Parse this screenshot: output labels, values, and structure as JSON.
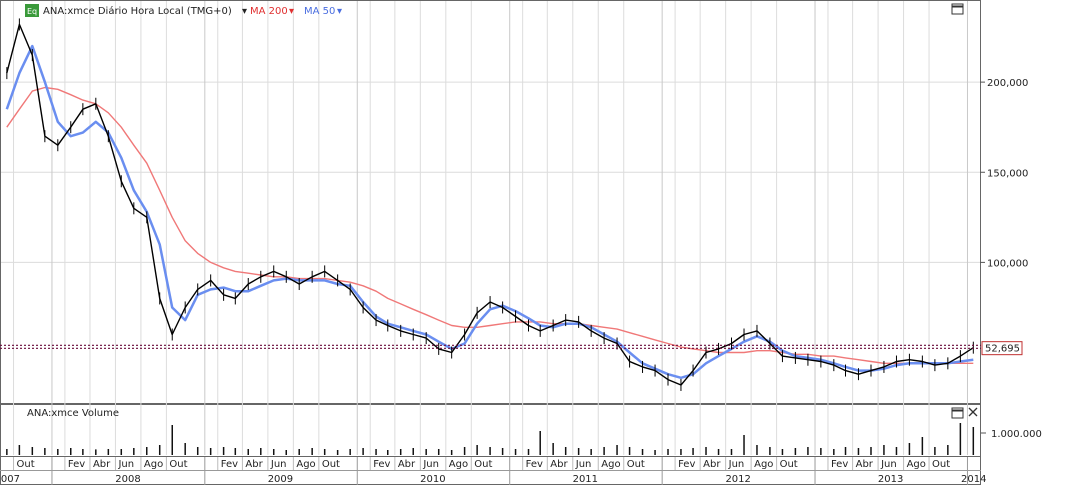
{
  "legend": {
    "badge": "Eq",
    "main_label": "ANA:xmce Diário Hora Local (TMG+0)",
    "ma200_label": "MA 200",
    "ma50_label": "MA 50",
    "colors": {
      "price": "#000000",
      "ma200": "#f07878",
      "ma50": "#6a8ef0",
      "badge": "#3a9a3a"
    }
  },
  "volume_panel": {
    "title": "ANA:xmce Volume",
    "tick": "1.000.000"
  },
  "price_axis": {
    "ticks": [
      "200,000",
      "150,000",
      "100,000"
    ],
    "last_price": "52,695"
  },
  "chart_data": {
    "type": "candlestick",
    "title": "ANA:xmce Diário Hora Local (TMG+0)",
    "x_range": [
      "2007-09-01",
      "2014-01-31"
    ],
    "ylim": [
      22000,
      245000
    ],
    "yticks": [
      100000,
      150000,
      200000
    ],
    "grid": true,
    "last_price": 52695,
    "support_line": 54000,
    "series": [
      {
        "name": "ANA:xmce",
        "x": [
          "2007-09",
          "2007-10",
          "2007-11",
          "2007-12",
          "2008-01",
          "2008-02",
          "2008-03",
          "2008-04",
          "2008-05",
          "2008-06",
          "2008-07",
          "2008-08",
          "2008-09",
          "2008-10",
          "2008-11",
          "2008-12",
          "2009-01",
          "2009-02",
          "2009-03",
          "2009-04",
          "2009-05",
          "2009-06",
          "2009-07",
          "2009-08",
          "2009-09",
          "2009-10",
          "2009-11",
          "2009-12",
          "2010-01",
          "2010-02",
          "2010-03",
          "2010-04",
          "2010-05",
          "2010-06",
          "2010-07",
          "2010-08",
          "2010-09",
          "2010-10",
          "2010-11",
          "2010-12",
          "2011-01",
          "2011-02",
          "2011-03",
          "2011-04",
          "2011-05",
          "2011-06",
          "2011-07",
          "2011-08",
          "2011-09",
          "2011-10",
          "2011-11",
          "2011-12",
          "2012-01",
          "2012-02",
          "2012-03",
          "2012-04",
          "2012-05",
          "2012-06",
          "2012-07",
          "2012-08",
          "2012-09",
          "2012-10",
          "2012-11",
          "2012-12",
          "2013-01",
          "2013-02",
          "2013-03",
          "2013-04",
          "2013-05",
          "2013-06",
          "2013-07",
          "2013-08",
          "2013-09",
          "2013-10",
          "2013-11",
          "2013-12",
          "2014-01"
        ],
        "values": [
          205000,
          232000,
          215000,
          170000,
          165000,
          175000,
          185000,
          188000,
          170000,
          145000,
          130000,
          125000,
          80000,
          60000,
          75000,
          85000,
          90000,
          82000,
          80000,
          88000,
          92000,
          95000,
          92000,
          88000,
          92000,
          95000,
          90000,
          85000,
          75000,
          68000,
          65000,
          62000,
          60000,
          58000,
          52000,
          50000,
          60000,
          72000,
          78000,
          75000,
          70000,
          65000,
          62000,
          65000,
          68000,
          67000,
          62000,
          58000,
          55000,
          45000,
          42000,
          40000,
          35000,
          32000,
          40000,
          50000,
          52000,
          55000,
          60000,
          62000,
          55000,
          48000,
          47000,
          46000,
          45000,
          43000,
          40000,
          38000,
          40000,
          42000,
          45000,
          46000,
          45000,
          43000,
          44000,
          48000,
          52695
        ]
      },
      {
        "name": "MA 50",
        "x": [
          "2007-09",
          "2007-10",
          "2007-11",
          "2007-12",
          "2008-01",
          "2008-02",
          "2008-03",
          "2008-04",
          "2008-05",
          "2008-06",
          "2008-07",
          "2008-08",
          "2008-09",
          "2008-10",
          "2008-11",
          "2008-12",
          "2009-01",
          "2009-02",
          "2009-03",
          "2009-04",
          "2009-05",
          "2009-06",
          "2009-07",
          "2009-08",
          "2009-09",
          "2009-10",
          "2009-11",
          "2009-12",
          "2010-01",
          "2010-02",
          "2010-03",
          "2010-04",
          "2010-05",
          "2010-06",
          "2010-07",
          "2010-08",
          "2010-09",
          "2010-10",
          "2010-11",
          "2010-12",
          "2011-01",
          "2011-02",
          "2011-03",
          "2011-04",
          "2011-05",
          "2011-06",
          "2011-07",
          "2011-08",
          "2011-09",
          "2011-10",
          "2011-11",
          "2011-12",
          "2012-01",
          "2012-02",
          "2012-03",
          "2012-04",
          "2012-05",
          "2012-06",
          "2012-07",
          "2012-08",
          "2012-09",
          "2012-10",
          "2012-11",
          "2012-12",
          "2013-01",
          "2013-02",
          "2013-03",
          "2013-04",
          "2013-05",
          "2013-06",
          "2013-07",
          "2013-08",
          "2013-09",
          "2013-10",
          "2013-11",
          "2013-12",
          "2014-01"
        ],
        "values": [
          185000,
          205000,
          220000,
          200000,
          178000,
          170000,
          172000,
          178000,
          172000,
          158000,
          140000,
          128000,
          110000,
          75000,
          68000,
          82000,
          85000,
          86000,
          84000,
          84000,
          87000,
          90000,
          91000,
          90000,
          90000,
          90000,
          88000,
          87000,
          78000,
          70000,
          66000,
          64000,
          62000,
          60000,
          56000,
          52000,
          55000,
          66000,
          74000,
          76000,
          73000,
          69000,
          65000,
          64000,
          66000,
          66000,
          64000,
          60000,
          56000,
          50000,
          44000,
          41000,
          38000,
          36000,
          38000,
          44000,
          48000,
          52000,
          56000,
          59000,
          56000,
          51000,
          48000,
          47000,
          46000,
          44000,
          42000,
          40000,
          40000,
          41000,
          43000,
          44000,
          44000,
          44000,
          44000,
          45000,
          46000
        ]
      },
      {
        "name": "MA 200",
        "x": [
          "2007-09",
          "2007-10",
          "2007-11",
          "2007-12",
          "2008-01",
          "2008-02",
          "2008-03",
          "2008-04",
          "2008-05",
          "2008-06",
          "2008-07",
          "2008-08",
          "2008-09",
          "2008-10",
          "2008-11",
          "2008-12",
          "2009-01",
          "2009-02",
          "2009-03",
          "2009-04",
          "2009-05",
          "2009-06",
          "2009-07",
          "2009-08",
          "2009-09",
          "2009-10",
          "2009-11",
          "2009-12",
          "2010-01",
          "2010-02",
          "2010-03",
          "2010-04",
          "2010-05",
          "2010-06",
          "2010-07",
          "2010-08",
          "2010-09",
          "2010-10",
          "2010-11",
          "2010-12",
          "2011-01",
          "2011-02",
          "2011-03",
          "2011-04",
          "2011-05",
          "2011-06",
          "2011-07",
          "2011-08",
          "2011-09",
          "2011-10",
          "2011-11",
          "2011-12",
          "2012-01",
          "2012-02",
          "2012-03",
          "2012-04",
          "2012-05",
          "2012-06",
          "2012-07",
          "2012-08",
          "2012-09",
          "2012-10",
          "2012-11",
          "2012-12",
          "2013-01",
          "2013-02",
          "2013-03",
          "2013-04",
          "2013-05",
          "2013-06",
          "2013-07",
          "2013-08",
          "2013-09",
          "2013-10",
          "2013-11",
          "2013-12",
          "2014-01"
        ],
        "values": [
          175000,
          185000,
          195000,
          197000,
          196000,
          193000,
          190000,
          188000,
          183000,
          175000,
          165000,
          155000,
          140000,
          125000,
          112000,
          105000,
          100000,
          97000,
          95000,
          94000,
          93000,
          92000,
          92000,
          91000,
          91000,
          91000,
          90000,
          89000,
          87000,
          84000,
          80000,
          77000,
          74000,
          71000,
          68000,
          65000,
          64000,
          64000,
          65000,
          66000,
          67000,
          67000,
          67000,
          66000,
          66000,
          66000,
          65000,
          64000,
          63000,
          61000,
          59000,
          57000,
          55000,
          53000,
          52000,
          51000,
          50000,
          50000,
          50000,
          51000,
          51000,
          50000,
          49000,
          49000,
          48000,
          48000,
          47000,
          46000,
          45000,
          44000,
          44000,
          44000,
          44000,
          44000,
          44000,
          44000,
          44000
        ]
      }
    ],
    "volume": {
      "name": "ANA:xmce Volume",
      "tick": 1000000,
      "x": [
        "2007-09",
        "2007-10",
        "2007-11",
        "2007-12",
        "2008-01",
        "2008-02",
        "2008-03",
        "2008-04",
        "2008-05",
        "2008-06",
        "2008-07",
        "2008-08",
        "2008-09",
        "2008-10",
        "2008-11",
        "2008-12",
        "2009-01",
        "2009-02",
        "2009-03",
        "2009-04",
        "2009-05",
        "2009-06",
        "2009-07",
        "2009-08",
        "2009-09",
        "2009-10",
        "2009-11",
        "2009-12",
        "2010-01",
        "2010-02",
        "2010-03",
        "2010-04",
        "2010-05",
        "2010-06",
        "2010-07",
        "2010-08",
        "2010-09",
        "2010-10",
        "2010-11",
        "2010-12",
        "2011-01",
        "2011-02",
        "2011-03",
        "2011-04",
        "2011-05",
        "2011-06",
        "2011-07",
        "2011-08",
        "2011-09",
        "2011-10",
        "2011-11",
        "2011-12",
        "2012-01",
        "2012-02",
        "2012-03",
        "2012-04",
        "2012-05",
        "2012-06",
        "2012-07",
        "2012-08",
        "2012-09",
        "2012-10",
        "2012-11",
        "2012-12",
        "2013-01",
        "2013-02",
        "2013-03",
        "2013-04",
        "2013-05",
        "2013-06",
        "2013-07",
        "2013-08",
        "2013-09",
        "2013-10",
        "2013-11",
        "2013-12",
        "2014-01"
      ],
      "values": [
        300000,
        500000,
        400000,
        350000,
        300000,
        350000,
        300000,
        280000,
        300000,
        300000,
        350000,
        400000,
        500000,
        1500000,
        600000,
        400000,
        350000,
        400000,
        350000,
        300000,
        350000,
        300000,
        250000,
        300000,
        350000,
        300000,
        250000,
        300000,
        350000,
        300000,
        250000,
        300000,
        350000,
        300000,
        300000,
        250000,
        400000,
        500000,
        400000,
        350000,
        300000,
        300000,
        1200000,
        600000,
        400000,
        350000,
        300000,
        400000,
        500000,
        400000,
        300000,
        250000,
        300000,
        300000,
        350000,
        400000,
        300000,
        300000,
        1000000,
        500000,
        400000,
        300000,
        350000,
        400000,
        350000,
        300000,
        400000,
        350000,
        400000,
        500000,
        400000,
        600000,
        900000,
        400000,
        500000,
        1600000,
        1400000
      ]
    },
    "x_tick_labels": [
      {
        "date": "2007-10-01",
        "label": "Out"
      },
      {
        "date": "2008-02-01",
        "label": "Fev"
      },
      {
        "date": "2008-04-01",
        "label": "Abr"
      },
      {
        "date": "2008-06-01",
        "label": "Jun"
      },
      {
        "date": "2008-08-01",
        "label": "Ago"
      },
      {
        "date": "2008-10-01",
        "label": "Out"
      },
      {
        "date": "2009-02-01",
        "label": "Fev"
      },
      {
        "date": "2009-04-01",
        "label": "Abr"
      },
      {
        "date": "2009-06-01",
        "label": "Jun"
      },
      {
        "date": "2009-08-01",
        "label": "Ago"
      },
      {
        "date": "2009-10-01",
        "label": "Out"
      },
      {
        "date": "2010-02-01",
        "label": "Fev"
      },
      {
        "date": "2010-04-01",
        "label": "Abr"
      },
      {
        "date": "2010-06-01",
        "label": "Jun"
      },
      {
        "date": "2010-08-01",
        "label": "Ago"
      },
      {
        "date": "2010-10-01",
        "label": "Out"
      },
      {
        "date": "2011-02-01",
        "label": "Fev"
      },
      {
        "date": "2011-04-01",
        "label": "Abr"
      },
      {
        "date": "2011-06-01",
        "label": "Jun"
      },
      {
        "date": "2011-08-01",
        "label": "Ago"
      },
      {
        "date": "2011-10-01",
        "label": "Out"
      },
      {
        "date": "2012-02-01",
        "label": "Fev"
      },
      {
        "date": "2012-04-01",
        "label": "Abr"
      },
      {
        "date": "2012-06-01",
        "label": "Jun"
      },
      {
        "date": "2012-08-01",
        "label": "Ago"
      },
      {
        "date": "2012-10-01",
        "label": "Out"
      },
      {
        "date": "2013-02-01",
        "label": "Fev"
      },
      {
        "date": "2013-04-01",
        "label": "Abr"
      },
      {
        "date": "2013-06-01",
        "label": "Jun"
      },
      {
        "date": "2013-08-01",
        "label": "Ago"
      },
      {
        "date": "2013-10-01",
        "label": "Out"
      }
    ],
    "year_labels": [
      {
        "year": "2007",
        "date": "2007-09-16"
      },
      {
        "year": "2008",
        "date": "2008-07-01"
      },
      {
        "year": "2009",
        "date": "2009-07-01"
      },
      {
        "year": "2010",
        "date": "2010-07-01"
      },
      {
        "year": "2011",
        "date": "2011-07-01"
      },
      {
        "year": "2012",
        "date": "2012-07-01"
      },
      {
        "year": "2013",
        "date": "2013-07-01"
      },
      {
        "year": "2014",
        "date": "2014-01-16"
      }
    ]
  }
}
